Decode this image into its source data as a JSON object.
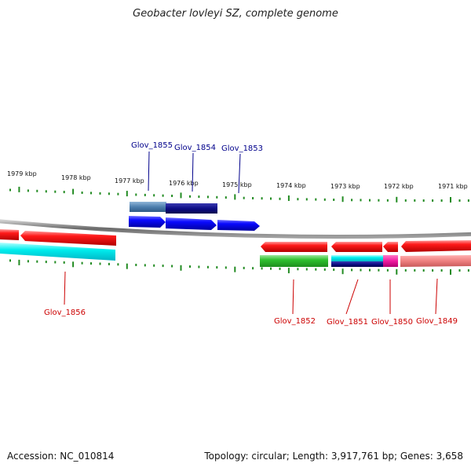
{
  "title": "Geobacter lovleyi SZ, complete genome",
  "footer": {
    "accession": "Accession: NC_010814",
    "summary": "Topology: circular; Length: 3,917,761 bp; Genes: 3,658"
  },
  "scale_labels": [
    "1979 kbp",
    "1978 kbp",
    "1977 kbp",
    "1976 kbp",
    "1975 kbp",
    "1974 kbp",
    "1973 kbp",
    "1972 kbp",
    "1971 kbp"
  ],
  "genes_top": [
    {
      "id": "Glov_1855",
      "color": "#00008b"
    },
    {
      "id": "Glov_1854",
      "color": "#00008b"
    },
    {
      "id": "Glov_1853",
      "color": "#00008b"
    }
  ],
  "genes_bottom": [
    {
      "id": "Glov_1856",
      "color": "#cc0000"
    },
    {
      "id": "Glov_1852",
      "color": "#cc0000"
    },
    {
      "id": "Glov_1851",
      "color": "#cc0000"
    },
    {
      "id": "Glov_1850",
      "color": "#cc0000"
    },
    {
      "id": "Glov_1849",
      "color": "#cc0000"
    }
  ],
  "colors": {
    "backbone": "#808080",
    "tick": "#228b22",
    "forward_gene": "#0000ee",
    "reverse_gene": "#ff0000",
    "cyan_feature": "#00e5ee",
    "green_feature": "#32cd32",
    "magenta_feature": "#ff1493",
    "pink_feature": "#f08080",
    "navy_feature": "#191970",
    "steel_feature": "#4682b4"
  }
}
